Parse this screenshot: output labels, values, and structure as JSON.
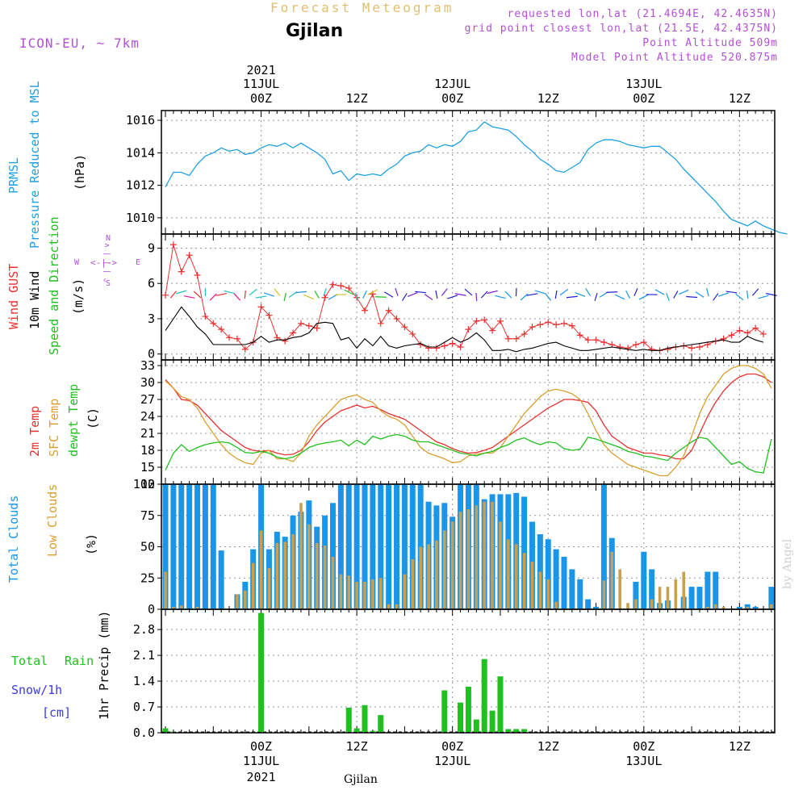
{
  "header": {
    "product": "Forecast Meteogram",
    "station": "Gjilan",
    "model": "ICON-EU, ~ 7km",
    "requested": "requested lon,lat (21.4694E, 42.4635N)",
    "gridpoint": "grid point closest lon,lat (21.5E, 42.4375N)",
    "point_alt": "Point Altitude 509m",
    "model_alt": "Model Point Altitude 520.875m",
    "watermark": "by Angel",
    "footer_station": "Gjilan"
  },
  "time_axis": {
    "top_year": "2021",
    "labels": [
      {
        "line1": "11JUL",
        "line2": "00Z",
        "year": "2021",
        "hour": 24
      },
      {
        "line1": "",
        "line2": "12Z",
        "year": "",
        "hour": 36
      },
      {
        "line1": "12JUL",
        "line2": "00Z",
        "year": "",
        "hour": 48
      },
      {
        "line1": "",
        "line2": "12Z",
        "year": "",
        "hour": 60
      },
      {
        "line1": "13JUL",
        "line2": "00Z",
        "year": "",
        "hour": 72
      },
      {
        "line1": "",
        "line2": "12Z",
        "year": "",
        "hour": 84
      }
    ]
  },
  "panel_labels": {
    "pressure": [
      "PRMSL",
      "Pressure Reduced to MSL",
      "(hPa)"
    ],
    "wind": [
      "Wind GUST",
      "10m Wind",
      "Speed and Direction",
      "(m/s)"
    ],
    "compass": {
      "n": "N",
      "s": "S",
      "w": "W",
      "e": "E",
      "ns_arrow": "^ | | | v",
      "we_arrow": "<-|->"
    },
    "temp": [
      "2m Temp",
      "SFC Temp",
      "dewpt Temp",
      "(C)"
    ],
    "clouds": [
      "Total Clouds",
      "Low Clouds",
      "(%)"
    ],
    "precip_left": [
      "Total",
      "Rain",
      "Snow/1h",
      "[cm]"
    ],
    "precip_axis": "1hr Precip (mm)"
  },
  "colors": {
    "pressure": "#1ea0e0",
    "gust": "#e83030",
    "wind": "#000000",
    "temp2m": "#e83030",
    "sfc": "#d9a030",
    "dewpt": "#20c020",
    "total_cloud": "#1a96e8",
    "low_cloud": "#c8a050",
    "precip": "#20c020",
    "meta": "#b44fd8",
    "product": "#e0c070"
  },
  "chart_data": [
    {
      "type": "line",
      "title": "PRMSL Pressure Reduced to MSL",
      "ylabel": "(hPa)",
      "ylim": [
        1009,
        1016.6
      ],
      "yticks": [
        1010,
        1012,
        1014,
        1016
      ],
      "x_hours": [
        12,
        13,
        14,
        15,
        16,
        17,
        18,
        19,
        20,
        21,
        22,
        23,
        24,
        25,
        26,
        27,
        28,
        29,
        30,
        31,
        32,
        33,
        34,
        35,
        36,
        37,
        38,
        39,
        40,
        41,
        42,
        43,
        44,
        45,
        46,
        47,
        48,
        49,
        50,
        51,
        52,
        53,
        54,
        55,
        56,
        57,
        58,
        59,
        60,
        61,
        62,
        63,
        64,
        65,
        66,
        67,
        68,
        69,
        70,
        71,
        72,
        73,
        74,
        75,
        76,
        77,
        78,
        79,
        80,
        81,
        82,
        83,
        84,
        85,
        86,
        87,
        88,
        89,
        90
      ],
      "series": [
        {
          "values": [
            1011.9,
            1012.8,
            1012.8,
            1012.6,
            1013.3,
            1013.8,
            1014.0,
            1014.3,
            1014.1,
            1014.2,
            1013.9,
            1014.0,
            1014.3,
            1014.5,
            1014.4,
            1014.6,
            1014.3,
            1014.6,
            1014.3,
            1014.0,
            1013.6,
            1012.7,
            1012.9,
            1012.3,
            1012.7,
            1012.6,
            1012.7,
            1012.6,
            1013.0,
            1013.3,
            1013.8,
            1014.0,
            1014.1,
            1014.5,
            1014.3,
            1014.5,
            1014.4,
            1014.7,
            1015.3,
            1015.4,
            1015.9,
            1015.6,
            1015.5,
            1015.4,
            1015.0,
            1014.5,
            1014.1,
            1013.6,
            1013.3,
            1012.9,
            1012.8,
            1013.1,
            1013.4,
            1014.2,
            1014.6,
            1014.8,
            1014.8,
            1014.7,
            1014.5,
            1014.4,
            1014.3,
            1014.4,
            1014.4,
            1014.0,
            1013.6,
            1013.0,
            1012.5,
            1012.0,
            1011.5,
            1011.0,
            1010.4,
            1009.9,
            1009.7,
            1009.5,
            1009.8,
            1009.5,
            1009.3,
            1009.1,
            1009.0
          ]
        }
      ]
    },
    {
      "type": "line",
      "title": "Wind GUST / 10m Wind Speed and Direction",
      "ylabel": "(m/s)",
      "ylim": [
        -0.5,
        10.2
      ],
      "yticks": [
        0,
        3,
        6,
        9
      ],
      "x_hours": [
        12,
        13,
        14,
        15,
        16,
        17,
        18,
        19,
        20,
        21,
        22,
        23,
        24,
        25,
        26,
        27,
        28,
        29,
        30,
        31,
        32,
        33,
        34,
        35,
        36,
        37,
        38,
        39,
        40,
        41,
        42,
        43,
        44,
        45,
        46,
        47,
        48,
        49,
        50,
        51,
        52,
        53,
        54,
        55,
        56,
        57,
        58,
        59,
        60,
        61,
        62,
        63,
        64,
        65,
        66,
        67,
        68,
        69,
        70,
        71,
        72,
        73,
        74,
        75,
        76,
        77,
        78,
        79,
        80,
        81,
        82,
        83,
        84,
        85,
        86,
        87
      ],
      "series": [
        {
          "name": "Wind GUST",
          "values": [
            5.0,
            9.3,
            7.0,
            8.4,
            6.7,
            3.2,
            2.6,
            2.1,
            1.4,
            1.3,
            0.4,
            1.0,
            4.0,
            3.3,
            1.4,
            1.1,
            1.8,
            2.6,
            2.4,
            2.2,
            4.8,
            5.9,
            5.8,
            5.6,
            4.8,
            3.7,
            5.1,
            2.6,
            3.7,
            3.0,
            2.3,
            1.7,
            0.8,
            0.5,
            0.5,
            0.7,
            0.9,
            0.6,
            2.1,
            2.8,
            2.9,
            2.0,
            2.8,
            1.3,
            1.3,
            1.7,
            2.3,
            2.5,
            2.7,
            2.5,
            2.6,
            2.4,
            1.6,
            1.2,
            1.2,
            1.0,
            0.8,
            0.6,
            0.5,
            0.8,
            1.0,
            0.4,
            0.3,
            0.4,
            0.6,
            0.7,
            0.5,
            0.6,
            0.8,
            1.1,
            1.3,
            1.6,
            2.0,
            1.8,
            2.2,
            1.7
          ]
        },
        {
          "name": "10m Wind",
          "values": [
            2.0,
            3.0,
            4.0,
            3.2,
            2.3,
            1.7,
            0.8,
            0.8,
            0.8,
            0.8,
            0.8,
            1.0,
            1.5,
            1.0,
            1.2,
            1.2,
            1.4,
            1.5,
            1.8,
            2.6,
            2.7,
            2.6,
            1.2,
            1.4,
            0.5,
            1.3,
            0.7,
            1.5,
            0.7,
            0.5,
            0.7,
            0.8,
            0.9,
            0.6,
            0.6,
            1.0,
            1.4,
            1.0,
            1.3,
            1.8,
            1.2,
            0.3,
            0.3,
            0.4,
            0.2,
            0.4,
            0.5,
            0.7,
            0.9,
            1.0,
            0.7,
            0.5,
            0.3,
            0.3,
            0.4,
            0.5,
            0.6,
            0.5,
            0.4,
            0.3,
            0.4,
            0.3,
            0.3,
            0.5,
            0.6,
            0.7,
            0.8,
            0.9,
            1.0,
            1.1,
            1.2,
            1.0,
            1.0,
            1.5,
            1.2,
            1.0
          ]
        }
      ]
    },
    {
      "type": "line",
      "title": "2m Temp / SFC Temp / dewpt Temp",
      "ylabel": "(C)",
      "ylim": [
        12,
        34
      ],
      "yticks": [
        12,
        15,
        18,
        21,
        24,
        27,
        30,
        33
      ],
      "x_hours": [
        12,
        13,
        14,
        15,
        16,
        17,
        18,
        19,
        20,
        21,
        22,
        23,
        24,
        25,
        26,
        27,
        28,
        29,
        30,
        31,
        32,
        33,
        34,
        35,
        36,
        37,
        38,
        39,
        40,
        41,
        42,
        43,
        44,
        45,
        46,
        47,
        48,
        49,
        50,
        51,
        52,
        53,
        54,
        55,
        56,
        57,
        58,
        59,
        60,
        61,
        62,
        63,
        64,
        65,
        66,
        67,
        68,
        69,
        70,
        71,
        72,
        73,
        74,
        75,
        76,
        77,
        78,
        79,
        80,
        81,
        82,
        83,
        84,
        85,
        86,
        87,
        88
      ],
      "series": [
        {
          "name": "2m Temp",
          "values": [
            30.5,
            29.0,
            27.0,
            26.8,
            26.0,
            24.5,
            23.0,
            21.5,
            20.5,
            19.5,
            18.5,
            18.0,
            17.8,
            18.0,
            17.5,
            17.2,
            17.3,
            18.0,
            19.5,
            21.5,
            23.0,
            24.0,
            25.0,
            25.5,
            26.0,
            25.5,
            25.8,
            25.2,
            24.5,
            24.0,
            23.5,
            22.5,
            21.5,
            20.5,
            19.5,
            19.0,
            18.3,
            17.8,
            17.5,
            17.6,
            18.0,
            18.5,
            19.5,
            20.5,
            21.5,
            22.5,
            23.5,
            24.5,
            25.5,
            26.2,
            27.0,
            27.0,
            26.8,
            26.5,
            25.0,
            22.5,
            20.5,
            19.5,
            18.5,
            18.0,
            17.5,
            17.5,
            17.2,
            17.0,
            16.5,
            16.5,
            18.0,
            21.0,
            24.0,
            26.5,
            28.5,
            30.0,
            31.0,
            31.5,
            31.5,
            31.0,
            30.0
          ]
        },
        {
          "name": "SFC Temp",
          "values": [
            30.3,
            29.0,
            27.5,
            27.0,
            25.5,
            23.0,
            21.0,
            19.0,
            17.5,
            16.5,
            15.8,
            15.5,
            17.5,
            18.0,
            16.5,
            16.5,
            16.0,
            17.5,
            20.5,
            22.5,
            24.0,
            25.5,
            27.0,
            27.5,
            27.8,
            27.0,
            26.5,
            25.0,
            24.0,
            23.5,
            22.5,
            20.5,
            18.5,
            17.5,
            17.0,
            16.5,
            15.8,
            16.0,
            17.0,
            17.3,
            17.5,
            17.5,
            18.5,
            20.5,
            22.5,
            24.5,
            26.0,
            27.5,
            28.5,
            28.8,
            28.5,
            28.0,
            27.0,
            24.5,
            21.5,
            19.0,
            17.5,
            16.5,
            15.5,
            15.0,
            14.5,
            14.0,
            13.5,
            13.5,
            15.0,
            17.0,
            20.5,
            24.5,
            27.5,
            29.5,
            31.5,
            32.5,
            33.0,
            33.0,
            32.5,
            31.5,
            29.0
          ]
        },
        {
          "name": "dewpt Temp",
          "values": [
            14.5,
            17.5,
            19.0,
            17.8,
            18.5,
            19.0,
            19.3,
            19.5,
            19.3,
            18.5,
            17.6,
            17.5,
            17.8,
            17.5,
            16.8,
            16.5,
            16.8,
            17.5,
            18.5,
            19.0,
            19.3,
            19.5,
            19.8,
            18.8,
            19.8,
            19.0,
            20.5,
            20.0,
            20.5,
            20.8,
            20.5,
            19.8,
            19.5,
            19.5,
            19.0,
            18.5,
            18.0,
            17.5,
            17.3,
            17.0,
            17.5,
            17.8,
            18.5,
            19.0,
            19.8,
            20.2,
            19.5,
            19.0,
            19.5,
            19.3,
            18.3,
            18.0,
            18.2,
            20.3,
            20.0,
            19.5,
            19.0,
            18.5,
            17.8,
            17.5,
            17.0,
            16.8,
            16.5,
            16.2,
            17.5,
            18.5,
            19.5,
            20.3,
            20.0,
            18.5,
            17.0,
            15.5,
            16.0,
            14.8,
            14.2,
            14.0,
            20.0
          ]
        }
      ]
    },
    {
      "type": "bar",
      "title": "Total Clouds / Low Clouds",
      "ylabel": "(%)",
      "ylim": [
        0,
        100
      ],
      "yticks": [
        0,
        25,
        50,
        75,
        100
      ],
      "x_hours": [
        12,
        13,
        14,
        15,
        16,
        17,
        18,
        19,
        20,
        21,
        22,
        23,
        24,
        25,
        26,
        27,
        28,
        29,
        30,
        31,
        32,
        33,
        34,
        35,
        36,
        37,
        38,
        39,
        40,
        41,
        42,
        43,
        44,
        45,
        46,
        47,
        48,
        49,
        50,
        51,
        52,
        53,
        54,
        55,
        56,
        57,
        58,
        59,
        60,
        61,
        62,
        63,
        64,
        65,
        66,
        67,
        68,
        69,
        70,
        71,
        72,
        73,
        74,
        75,
        76,
        77,
        78,
        79,
        80,
        81,
        82,
        83,
        84,
        85,
        86,
        87,
        88
      ],
      "series": [
        {
          "name": "Total Clouds",
          "values": [
            100,
            100,
            100,
            100,
            100,
            100,
            100,
            47,
            0,
            12,
            22,
            48,
            100,
            48,
            62,
            58,
            75,
            78,
            87,
            66,
            75,
            85,
            100,
            100,
            100,
            100,
            100,
            100,
            100,
            100,
            100,
            100,
            100,
            86,
            83,
            85,
            74,
            100,
            100,
            100,
            88,
            92,
            92,
            92,
            93,
            90,
            70,
            60,
            56,
            48,
            42,
            32,
            24,
            8,
            2,
            100,
            57,
            0,
            0,
            22,
            46,
            32,
            5,
            7,
            0,
            10,
            18,
            18,
            30,
            30,
            0,
            0,
            2,
            4,
            2,
            0,
            18
          ]
        },
        {
          "name": "Low Clouds",
          "values": [
            30,
            2,
            3,
            0,
            2,
            0,
            0,
            0,
            0,
            12,
            15,
            37,
            63,
            33,
            53,
            54,
            60,
            85,
            68,
            53,
            51,
            42,
            28,
            27,
            22,
            22,
            24,
            25,
            4,
            4,
            28,
            40,
            50,
            52,
            55,
            63,
            70,
            78,
            80,
            83,
            86,
            86,
            70,
            56,
            52,
            45,
            38,
            30,
            24,
            6,
            0,
            0,
            0,
            0,
            0,
            23,
            46,
            32,
            5,
            8,
            0,
            8,
            18,
            18,
            24,
            30,
            0,
            0,
            2,
            4,
            2,
            0,
            0,
            2,
            0,
            0,
            4
          ]
        }
      ]
    },
    {
      "type": "bar",
      "title": "1hr Precip (mm)",
      "ylabel": "1hr Precip (mm)",
      "ylim": [
        0,
        3.35
      ],
      "yticks": [
        0,
        0.7,
        1.4,
        2.1,
        2.8
      ],
      "x_hours": [
        12,
        13,
        24,
        35,
        36,
        37,
        38,
        39,
        47,
        48,
        49,
        50,
        51,
        52,
        53,
        54,
        55,
        56,
        57
      ],
      "series": [
        {
          "name": "Total Rain",
          "values": [
            0.12,
            0.03,
            3.25,
            0.68,
            0.12,
            0.75,
            0.05,
            0.48,
            1.15,
            0.02,
            0.82,
            1.25,
            0.36,
            2.0,
            0.6,
            1.53,
            0.1,
            0.1,
            0.1
          ]
        }
      ]
    }
  ]
}
